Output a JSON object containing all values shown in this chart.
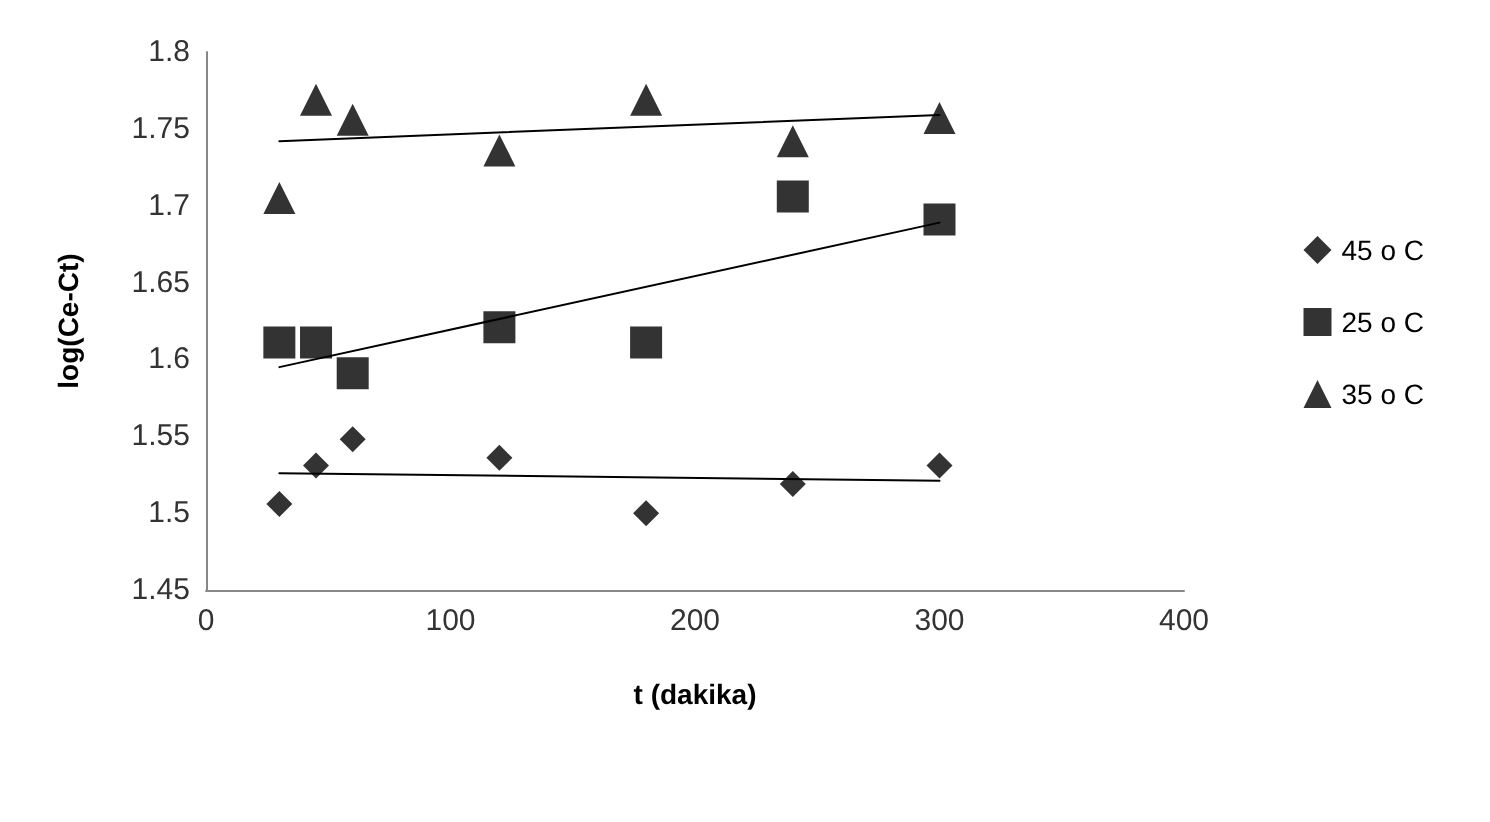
{
  "chart_data": {
    "type": "scatter",
    "xlabel": "t (dakika)",
    "ylabel": "log(Ce-Ct)",
    "xlim": [
      0,
      400
    ],
    "xticks": [
      0,
      100,
      200,
      300,
      400
    ],
    "ylim": [
      1.45,
      1.8
    ],
    "yticks": [
      1.45,
      1.5,
      1.55,
      1.6,
      1.65,
      1.7,
      1.75,
      1.8
    ],
    "grid": false,
    "legend": "right",
    "series": [
      {
        "name": "45 o C",
        "color": "#000000",
        "marker": "diamond",
        "x": [
          30,
          45,
          60,
          120,
          180,
          240,
          300
        ],
        "values": [
          1.506,
          1.531,
          1.548,
          1.536,
          1.5,
          1.519,
          1.531
        ]
      },
      {
        "name": "25 o C",
        "color": "#000000",
        "marker": "square",
        "x": [
          30,
          45,
          60,
          120,
          180,
          240,
          300
        ],
        "values": [
          1.611,
          1.611,
          1.591,
          1.621,
          1.611,
          1.706,
          1.691
        ]
      },
      {
        "name": "35 o C",
        "color": "#000000",
        "marker": "triangle",
        "x": [
          30,
          45,
          60,
          120,
          180,
          240,
          300
        ],
        "values": [
          1.705,
          1.769,
          1.756,
          1.736,
          1.769,
          1.742,
          1.757
        ]
      },
      {
        "type": "line",
        "color": "#000000",
        "marker": "none",
        "x": [
          30,
          300
        ],
        "values": [
          1.526,
          1.521
        ]
      },
      {
        "type": "line",
        "color": "#000000",
        "marker": "none",
        "x": [
          30,
          300
        ],
        "values": [
          1.595,
          1.689
        ]
      },
      {
        "type": "line",
        "color": "#000000",
        "marker": "none",
        "x": [
          30,
          300
        ],
        "values": [
          1.742,
          1.759
        ]
      }
    ]
  }
}
